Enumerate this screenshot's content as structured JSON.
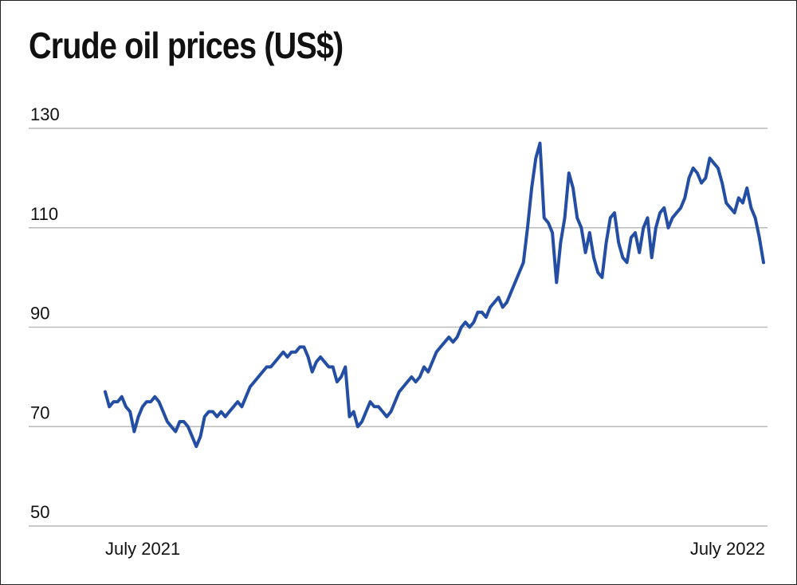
{
  "chart_data": {
    "type": "line",
    "title": "Crude oil prices (US$)",
    "xlabel": "",
    "ylabel": "",
    "y_ticks": [
      130,
      110,
      90,
      70,
      50
    ],
    "x_tick_labels": [
      "July 2021",
      "July 2022"
    ],
    "ylim": [
      50,
      130
    ],
    "grid": true,
    "legend": "none",
    "color": "#234ea3",
    "series": [
      {
        "values": [
          77,
          74,
          75,
          75,
          76,
          74,
          73,
          69,
          72,
          74,
          75,
          75,
          76,
          75,
          73,
          71,
          70,
          69,
          71,
          71,
          70,
          68,
          66,
          68,
          72,
          73,
          73,
          72,
          73,
          72,
          73,
          74,
          75,
          74,
          76,
          78,
          79,
          80,
          81,
          82,
          82,
          83,
          84,
          85,
          84,
          85,
          85,
          86,
          86,
          84,
          81,
          83,
          84,
          83,
          82,
          82,
          79,
          80,
          82,
          72,
          73,
          70,
          71,
          73,
          75,
          74,
          74,
          73,
          72,
          73,
          75,
          77,
          78,
          79,
          80,
          79,
          80,
          82,
          81,
          83,
          85,
          86,
          87,
          88,
          87,
          88,
          90,
          91,
          90,
          91,
          93,
          93,
          92,
          94,
          95,
          96,
          94,
          95,
          97,
          99,
          101,
          103,
          110,
          118,
          124,
          127,
          112,
          111,
          109,
          99,
          107,
          112,
          121,
          118,
          112,
          110,
          105,
          109,
          104,
          101,
          100,
          107,
          112,
          113,
          107,
          104,
          103,
          108,
          109,
          105,
          110,
          112,
          104,
          110,
          113,
          114,
          110,
          112,
          113,
          114,
          116,
          120,
          122,
          121,
          119,
          120,
          124,
          123,
          122,
          119,
          115,
          114,
          113,
          116,
          115,
          118,
          114,
          112,
          108,
          103
        ]
      }
    ]
  }
}
